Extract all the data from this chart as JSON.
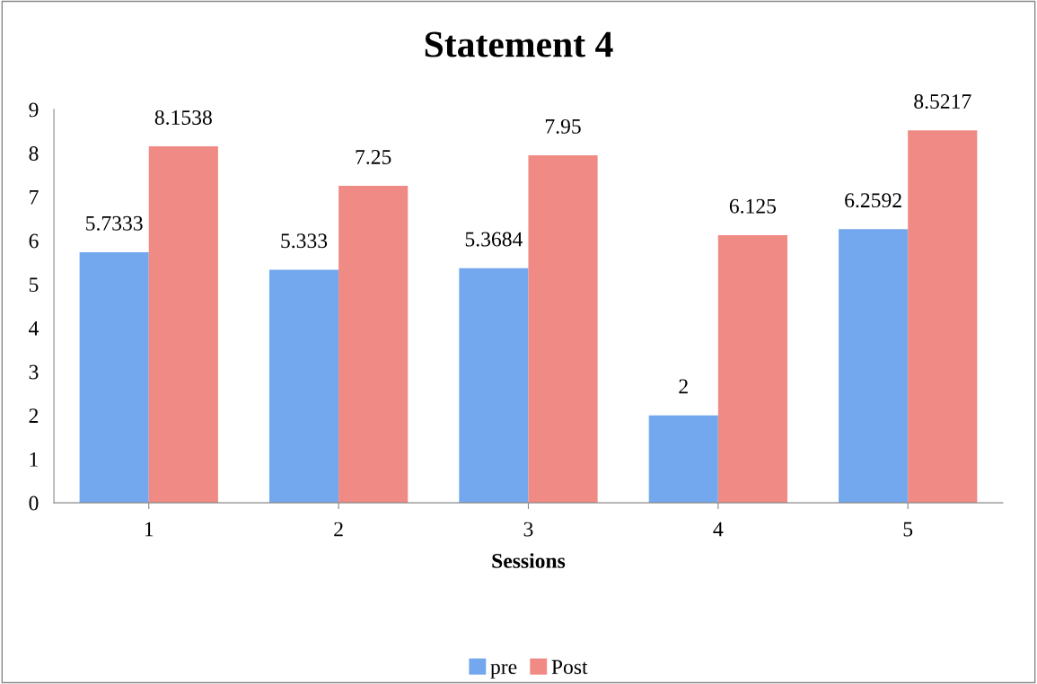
{
  "chart_data": {
    "type": "bar",
    "title": "Statement 4",
    "xlabel": "Sessions",
    "categories": [
      "1",
      "2",
      "3",
      "4",
      "5"
    ],
    "series": [
      {
        "name": "pre",
        "color": "#74a8ee",
        "values": [
          5.7333,
          5.333,
          5.3684,
          2,
          6.2592
        ]
      },
      {
        "name": "Post",
        "color": "#f08a84",
        "values": [
          8.1538,
          7.25,
          7.95,
          6.125,
          8.5217
        ]
      }
    ],
    "ylim": [
      0,
      9
    ],
    "yticks": [
      0,
      1,
      2,
      3,
      4,
      5,
      6,
      7,
      8,
      9
    ],
    "data_labels": true,
    "grid": false,
    "legend": "bottom"
  }
}
